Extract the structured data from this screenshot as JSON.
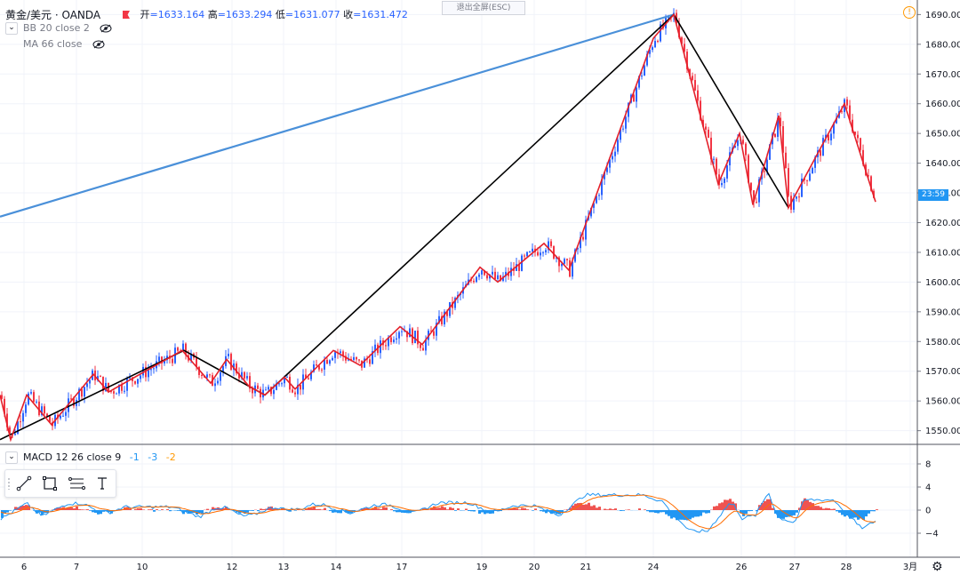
{
  "header": {
    "symbol": "黄金/美元 · OANDA",
    "open_label": "开",
    "open": "=1633.164",
    "high_label": "高",
    "high": "=1633.294",
    "low_label": "低",
    "low": "=1631.077",
    "close_label": "收",
    "close": "=1631.472"
  },
  "indicators": {
    "bb": "BB 20 close 2",
    "ma": "MA 66 close",
    "macd_name": "MACD 12 26 close 9",
    "macd_v1": "-1",
    "macd_v2": "-3",
    "macd_v3": "-2"
  },
  "overlay": {
    "exit_fullscreen": "退出全屏(ESC)"
  },
  "price_axis": {
    "ticks": [
      "1690.000",
      "1680.000",
      "1670.000",
      "1660.000",
      "1650.000",
      "1640.000",
      "1630.000",
      "1620.000",
      "1610.000",
      "1600.000",
      "1590.000",
      "1580.000",
      "1570.000",
      "1560.000",
      "1550.000"
    ],
    "countdown": "23:59"
  },
  "macd_axis": {
    "ticks": [
      "8",
      "4",
      "0",
      "−4"
    ]
  },
  "time_axis": {
    "labels": [
      "6",
      "7",
      "10",
      "12",
      "13",
      "14",
      "17",
      "19",
      "20",
      "21",
      "24",
      "26",
      "27",
      "28",
      "3月"
    ]
  },
  "colors": {
    "up": "#2962ff",
    "down": "#f23645",
    "zigzag_minor": "#e4202a",
    "zigzag_major": "#000000",
    "trend_line": "#4a90d9",
    "macd_line": "#2196f3",
    "signal_line": "#ff6d00",
    "hist_up": "#ef5350",
    "hist_down": "#2196f3"
  },
  "chart_data": {
    "type": "line",
    "title": "黄金/美元 · OANDA",
    "ylim": [
      1546,
      1694
    ],
    "zigzag_major": [
      [
        0,
        1547
      ],
      [
        207,
        1577
      ],
      [
        298,
        1562
      ],
      [
        758,
        1690
      ],
      [
        887,
        1625
      ]
    ],
    "zigzag_minor": [
      [
        0,
        1562
      ],
      [
        12,
        1547
      ],
      [
        30,
        1562
      ],
      [
        58,
        1552
      ],
      [
        105,
        1569
      ],
      [
        122,
        1563
      ],
      [
        205,
        1577
      ],
      [
        237,
        1566
      ],
      [
        255,
        1574
      ],
      [
        280,
        1565
      ],
      [
        298,
        1562
      ],
      [
        320,
        1568
      ],
      [
        332,
        1564
      ],
      [
        375,
        1577
      ],
      [
        405,
        1572
      ],
      [
        450,
        1585
      ],
      [
        475,
        1579
      ],
      [
        540,
        1605
      ],
      [
        560,
        1600
      ],
      [
        612,
        1613
      ],
      [
        640,
        1604
      ],
      [
        735,
        1682
      ],
      [
        758,
        1690
      ],
      [
        808,
        1633
      ],
      [
        832,
        1650
      ],
      [
        847,
        1626
      ],
      [
        876,
        1656
      ],
      [
        887,
        1625
      ],
      [
        950,
        1660
      ],
      [
        985,
        1627
      ]
    ],
    "trend_line": [
      [
        0,
        1622
      ],
      [
        758,
        1690
      ]
    ]
  },
  "toolbar": {
    "tools": [
      "trend-line-tool",
      "rectangle-tool",
      "fib-tool",
      "text-tool"
    ]
  }
}
